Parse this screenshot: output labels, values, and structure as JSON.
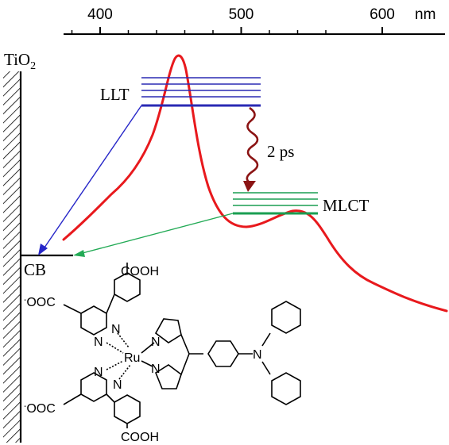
{
  "axis": {
    "ticks": [
      {
        "value": 400,
        "label": "400"
      },
      {
        "value": 500,
        "label": "500"
      },
      {
        "value": 600,
        "label": "600"
      }
    ],
    "unit": "nm",
    "range": [
      375,
      565
    ]
  },
  "labels": {
    "electrode": "TiO",
    "electrode_sub": "2",
    "llt": "LLT",
    "mlct": "MLCT",
    "cb": "CB",
    "transfer_time": "2 ps"
  },
  "molecule": {
    "cooh_top": "COOH",
    "cooh_bottom": "COOH",
    "ooc_upper": "OOC",
    "ooc_lower": "OOC",
    "metal": "Ru",
    "nitrogen": "N"
  },
  "colors": {
    "spectrum": "#e8191d",
    "llt": "#2a2ab4",
    "mlct": "#1a9e52",
    "decay": "#8b1414",
    "llt_arrow": "#2626c8",
    "mlct_arrow": "#22aa55"
  }
}
